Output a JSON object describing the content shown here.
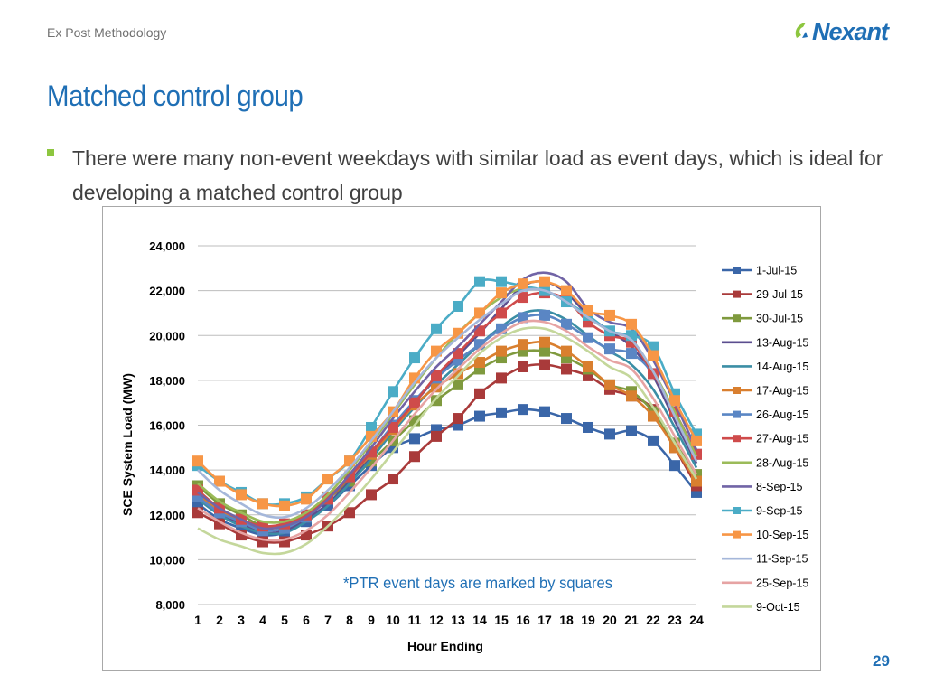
{
  "header": {
    "label": "Ex Post Methodology"
  },
  "logo": {
    "text": "Nexant"
  },
  "title": "Matched control group",
  "bullet": "There were many non-event weekdays with similar load as event days, which is ideal for developing a matched control group",
  "page_number": "29",
  "chart_data": {
    "type": "line",
    "title": "",
    "xlabel": "Hour Ending",
    "ylabel": "SCE System Load (MW)",
    "ylim": [
      8000,
      24000
    ],
    "yticks": [
      8000,
      10000,
      12000,
      14000,
      16000,
      18000,
      20000,
      22000,
      24000
    ],
    "ytick_labels": [
      "8,000",
      "10,000",
      "12,000",
      "14,000",
      "16,000",
      "18,000",
      "20,000",
      "22,000",
      "24,000"
    ],
    "x": [
      1,
      2,
      3,
      4,
      5,
      6,
      7,
      8,
      9,
      10,
      11,
      12,
      13,
      14,
      15,
      16,
      17,
      18,
      19,
      20,
      21,
      22,
      23,
      24
    ],
    "grid": "horizontal",
    "legend_position": "right",
    "annotation": "*PTR event days are marked by squares",
    "series": [
      {
        "name": "1-Jul-15",
        "color": "#3a66a8",
        "markers": true,
        "values": [
          12500,
          11800,
          11400,
          11100,
          11200,
          11700,
          12400,
          13300,
          14200,
          15000,
          15400,
          15800,
          16000,
          16400,
          16550,
          16700,
          16600,
          16300,
          15900,
          15600,
          15750,
          15300,
          14200,
          13000
        ]
      },
      {
        "name": "29-Jul-15",
        "color": "#a93a3a",
        "markers": true,
        "values": [
          12100,
          11600,
          11100,
          10800,
          10800,
          11100,
          11500,
          12100,
          12900,
          13600,
          14600,
          15500,
          16300,
          17400,
          18100,
          18600,
          18700,
          18500,
          18200,
          17600,
          17300,
          16700,
          15000,
          13300
        ]
      },
      {
        "name": "30-Jul-15",
        "color": "#7f9a3e",
        "markers": true,
        "values": [
          13300,
          12500,
          12000,
          11500,
          11500,
          11900,
          12700,
          13500,
          14400,
          15300,
          16200,
          17100,
          17800,
          18500,
          19000,
          19300,
          19300,
          19000,
          18500,
          17800,
          17500,
          16600,
          15200,
          13800
        ]
      },
      {
        "name": "13-Aug-15",
        "color": "#5b4e8f",
        "markers": false,
        "values": [
          12800,
          12100,
          11600,
          11200,
          11300,
          11800,
          12500,
          13500,
          14600,
          15800,
          17000,
          18100,
          19100,
          20100,
          21200,
          22200,
          22400,
          21900,
          20900,
          20200,
          19500,
          18200,
          16200,
          14300
        ]
      },
      {
        "name": "14-Aug-15",
        "color": "#3b8ea5",
        "markers": false,
        "values": [
          12700,
          12000,
          11500,
          11200,
          11200,
          11700,
          12400,
          13400,
          14500,
          15700,
          16800,
          17800,
          18700,
          19600,
          20400,
          21000,
          21100,
          20700,
          20000,
          19300,
          18700,
          17600,
          15900,
          14100
        ]
      },
      {
        "name": "17-Aug-15",
        "color": "#d97f2f",
        "markers": true,
        "values": [
          12900,
          12200,
          11700,
          11400,
          11500,
          12000,
          12800,
          13700,
          14700,
          15800,
          16900,
          17700,
          18300,
          18800,
          19300,
          19600,
          19700,
          19300,
          18600,
          17800,
          17300,
          16400,
          15000,
          13500
        ]
      },
      {
        "name": "26-Aug-15",
        "color": "#5a86c4",
        "markers": true,
        "values": [
          12800,
          12100,
          11700,
          11300,
          11400,
          11900,
          12700,
          13700,
          14800,
          16000,
          17100,
          18100,
          18900,
          19600,
          20300,
          20800,
          20900,
          20500,
          19900,
          19400,
          19200,
          18300,
          16600,
          14700
        ]
      },
      {
        "name": "27-Aug-15",
        "color": "#cf4b4b",
        "markers": true,
        "values": [
          13100,
          12300,
          11800,
          11500,
          11600,
          12000,
          12700,
          13700,
          14800,
          15900,
          17000,
          18200,
          19200,
          20200,
          21000,
          21700,
          21900,
          21600,
          20600,
          20000,
          19700,
          18300,
          16600,
          14700
        ]
      },
      {
        "name": "28-Aug-15",
        "color": "#9bbb59",
        "markers": false,
        "values": [
          13400,
          12600,
          12100,
          11700,
          11700,
          12100,
          12900,
          14000,
          15200,
          16500,
          17800,
          19000,
          20100,
          21000,
          21700,
          22100,
          22000,
          21500,
          20800,
          20200,
          19800,
          18400,
          16600,
          14600
        ]
      },
      {
        "name": "8-Sep-15",
        "color": "#7164a6",
        "markers": false,
        "values": [
          13000,
          12300,
          11800,
          11400,
          11500,
          11900,
          12700,
          13800,
          15000,
          16300,
          17500,
          18600,
          19500,
          20500,
          21500,
          22500,
          22800,
          22400,
          21200,
          20600,
          20300,
          18900,
          17000,
          14900
        ]
      },
      {
        "name": "9-Sep-15",
        "color": "#4bacc6",
        "markers": true,
        "values": [
          14200,
          13500,
          13000,
          12500,
          12500,
          12800,
          13600,
          14400,
          15900,
          17500,
          19000,
          20300,
          21300,
          22400,
          22400,
          22200,
          22000,
          21500,
          20900,
          20200,
          20000,
          19500,
          17400,
          15600
        ]
      },
      {
        "name": "10-Sep-15",
        "color": "#f79646",
        "markers": true,
        "values": [
          14400,
          13500,
          12900,
          12500,
          12400,
          12700,
          13600,
          14400,
          15500,
          16600,
          18100,
          19300,
          20100,
          21000,
          21900,
          22300,
          22400,
          22000,
          21100,
          20900,
          20500,
          19100,
          17100,
          15300
        ]
      },
      {
        "name": "11-Sep-15",
        "color": "#a5b7da",
        "markers": false,
        "values": [
          14000,
          13100,
          12500,
          12000,
          11900,
          12300,
          13100,
          14100,
          15300,
          16600,
          17900,
          19000,
          19900,
          20700,
          21400,
          22000,
          22000,
          21500,
          20800,
          20200,
          19800,
          18400,
          16400,
          14400
        ]
      },
      {
        "name": "25-Sep-15",
        "color": "#e6a3a3",
        "markers": false,
        "values": [
          12300,
          11700,
          11200,
          10900,
          10900,
          11300,
          12000,
          13000,
          14100,
          15300,
          16500,
          17600,
          18500,
          19400,
          20100,
          20600,
          20600,
          20200,
          19500,
          18900,
          18500,
          17200,
          15500,
          13800
        ]
      },
      {
        "name": "9-Oct-15",
        "color": "#c4d79b",
        "markers": false,
        "values": [
          11400,
          10900,
          10600,
          10300,
          10300,
          10700,
          11500,
          12500,
          13600,
          14800,
          16000,
          17200,
          18200,
          19200,
          19900,
          20300,
          20300,
          19900,
          19300,
          18600,
          18100,
          16800,
          15200,
          13600
        ]
      }
    ]
  }
}
